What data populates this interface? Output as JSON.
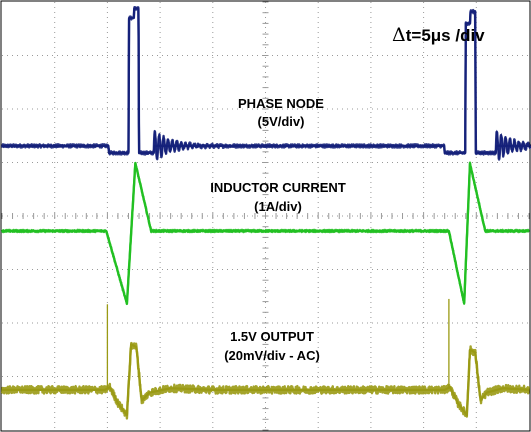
{
  "chart_data": {
    "type": "line",
    "title": "",
    "xlabel": "",
    "ylabel": "",
    "grid": true,
    "x_divisions": 10,
    "y_divisions": 8,
    "timebase": {
      "prefix": "Δ",
      "text": "t=5μs /div"
    },
    "annotations": [
      {
        "id": "phase",
        "lines": [
          "PHASE NODE",
          "(5V/div)"
        ]
      },
      {
        "id": "inductor",
        "lines": [
          "INDUCTOR CURRENT",
          "(1A/div)"
        ]
      },
      {
        "id": "output",
        "lines": [
          "1.5V OUTPUT",
          "(20mV/div - AC)"
        ]
      }
    ],
    "x_range_div": [
      0,
      10
    ],
    "y_range_div": [
      -4,
      4
    ],
    "series": [
      {
        "id": "phase",
        "color": "#15217a",
        "units_per_div": "5V/div",
        "noise_div": 0.03,
        "ringing": [
          {
            "t_div": 2.88,
            "amp_div": 0.28,
            "freq_per_div": 12,
            "decay_div": 0.35
          },
          {
            "t_div": 9.37,
            "amp_div": 0.28,
            "freq_per_div": 12,
            "decay_div": 0.35
          }
        ],
        "x": [
          0,
          2.02,
          2.03,
          2.4,
          2.41,
          2.5,
          2.51,
          2.59,
          2.6,
          2.88,
          2.89,
          8.39,
          8.4,
          8.79,
          8.8,
          8.88,
          8.89,
          8.98,
          8.99,
          9.37,
          9.38,
          10
        ],
        "y": [
          1.31,
          1.31,
          1.18,
          1.18,
          3.7,
          3.7,
          3.88,
          3.88,
          1.18,
          1.18,
          1.31,
          1.31,
          1.18,
          1.18,
          3.6,
          3.6,
          3.82,
          3.82,
          1.18,
          1.18,
          1.31,
          1.31
        ]
      },
      {
        "id": "inductor",
        "color": "#22c022",
        "units_per_div": "1A/div",
        "noise_div": 0.02,
        "x": [
          0,
          1.98,
          2.37,
          2.53,
          2.83,
          8.48,
          8.77,
          8.88,
          9.17,
          10
        ],
        "y": [
          -0.28,
          -0.28,
          -1.64,
          0.99,
          -0.28,
          -0.28,
          -1.64,
          0.98,
          -0.28,
          -0.28
        ]
      },
      {
        "id": "output",
        "color": "#9a9a14",
        "units_per_div": "20mV/div - AC",
        "noise_div": 0.07,
        "spikes": [
          {
            "t_div": 2.0,
            "y_div": -1.65
          },
          {
            "t_div": 8.48,
            "y_div": -1.55
          }
        ],
        "x": [
          0,
          1.95,
          2.05,
          2.2,
          2.37,
          2.45,
          2.55,
          2.65,
          2.8,
          3.2,
          4,
          8.4,
          8.5,
          8.65,
          8.82,
          8.88,
          8.98,
          9.08,
          9.2,
          9.5,
          10
        ],
        "y": [
          -3.25,
          -3.25,
          -3.2,
          -3.5,
          -3.72,
          -2.4,
          -2.45,
          -3.45,
          -3.3,
          -3.22,
          -3.25,
          -3.25,
          -3.2,
          -3.5,
          -3.72,
          -2.5,
          -2.55,
          -3.45,
          -3.3,
          -3.22,
          -3.25
        ]
      }
    ]
  }
}
